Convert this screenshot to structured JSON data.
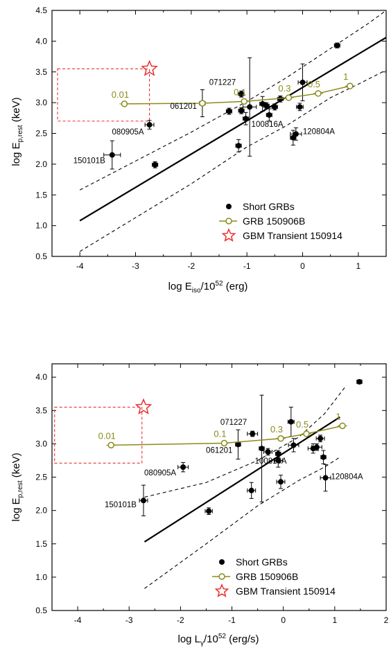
{
  "chart_data": [
    {
      "type": "scatter",
      "xlabel": {
        "main": "log E",
        "sub": "iso",
        "tail": "/10",
        "sup": "52",
        "unit": " (erg)"
      },
      "ylabel": {
        "main": "log E",
        "sub": "p,rest",
        "unit": " (keV)"
      },
      "xlim": [
        -4.5,
        1.5
      ],
      "ylim": [
        0.5,
        4.5
      ],
      "xticks": [
        -4,
        -3,
        -2,
        -1,
        0,
        1
      ],
      "yticks": [
        0.5,
        1.0,
        1.5,
        2.0,
        2.5,
        3.0,
        3.5,
        4.0,
        4.5
      ],
      "ytick_labels": [
        "0.5",
        "1.0",
        "1.5",
        "2.0",
        "2.5",
        "3.0",
        "3.5",
        "4.0",
        "4.5"
      ],
      "short_grbs": [
        {
          "x": -3.42,
          "y": 2.15,
          "xerr": 0.15,
          "yerr": 0.23
        },
        {
          "x": -2.75,
          "y": 2.64,
          "xerr": 0.08,
          "yerr": 0.07
        },
        {
          "x": -2.65,
          "y": 1.99,
          "xerr": 0.05,
          "yerr": 0.05
        },
        {
          "x": -1.8,
          "y": 2.99,
          "xerr": 0.05,
          "yerr": 0.22
        },
        {
          "x": -1.32,
          "y": 2.86,
          "xerr": 0.05,
          "yerr": 0.05
        },
        {
          "x": -1.1,
          "y": 3.14,
          "xerr": 0.05,
          "yerr": 0.05
        },
        {
          "x": -1.1,
          "y": 2.87,
          "xerr": 0.05,
          "yerr": 0.05
        },
        {
          "x": -1.15,
          "y": 2.3,
          "xerr": 0.05,
          "yerr": 0.1
        },
        {
          "x": -1.02,
          "y": 2.74,
          "xerr": 0.05,
          "yerr": 0.1
        },
        {
          "x": -0.95,
          "y": 2.93,
          "xerr": 0.12,
          "yerr": 0.8
        },
        {
          "x": -0.72,
          "y": 2.98,
          "xerr": 0.05,
          "yerr": 0.12
        },
        {
          "x": -0.65,
          "y": 2.95,
          "xerr": 0.05,
          "yerr": 0.05
        },
        {
          "x": -0.6,
          "y": 2.8,
          "xerr": 0.05,
          "yerr": 0.1
        },
        {
          "x": -0.5,
          "y": 2.93,
          "xerr": 0.05,
          "yerr": 0.05
        },
        {
          "x": -0.4,
          "y": 3.06,
          "xerr": 0.05,
          "yerr": 0.05
        },
        {
          "x": -0.05,
          "y": 2.93,
          "xerr": 0.06,
          "yerr": 0.06
        },
        {
          "x": 0.0,
          "y": 3.33,
          "xerr": 0.08,
          "yerr": 0.3
        },
        {
          "x": -0.17,
          "y": 2.43,
          "xerr": 0.05,
          "yerr": 0.12
        },
        {
          "x": -0.12,
          "y": 2.49,
          "xerr": 0.1,
          "yerr": 0.1
        },
        {
          "x": 0.62,
          "y": 3.93,
          "xerr": 0.05,
          "yerr": 0.04
        }
      ],
      "grb_150906b": [
        {
          "x": -3.2,
          "y": 2.98,
          "label": "0.01"
        },
        {
          "x": -1.8,
          "y": 2.99,
          "label": ""
        },
        {
          "x": -1.05,
          "y": 3.02,
          "label": "0.1"
        },
        {
          "x": -0.25,
          "y": 3.08,
          "label": "0.3"
        },
        {
          "x": 0.28,
          "y": 3.15,
          "label": "0.5"
        },
        {
          "x": 0.85,
          "y": 3.27,
          "label": "1"
        }
      ],
      "fit_line": [
        [
          -4.0,
          1.08
        ],
        [
          1.5,
          4.06
        ]
      ],
      "band_upper": [
        [
          -4.0,
          1.58
        ],
        [
          -3.0,
          2.05
        ],
        [
          -2.0,
          2.52
        ],
        [
          -1.0,
          3.02
        ],
        [
          -0.3,
          3.4
        ],
        [
          0.5,
          3.88
        ],
        [
          1.2,
          4.3
        ],
        [
          1.5,
          4.5
        ]
      ],
      "band_lower": [
        [
          -4.0,
          0.58
        ],
        [
          -3.0,
          1.13
        ],
        [
          -2.0,
          1.68
        ],
        [
          -1.0,
          2.28
        ],
        [
          -0.3,
          2.62
        ],
        [
          0.5,
          3.08
        ],
        [
          1.0,
          3.3
        ],
        [
          1.5,
          3.53
        ]
      ],
      "transient_box": {
        "x": [
          -4.4,
          -2.75
        ],
        "y": [
          2.7,
          3.55
        ]
      },
      "transient_star": {
        "x": -2.75,
        "y": 3.55
      },
      "annotations": [
        "071227",
        "061201",
        "080905A",
        "150101B",
        "100816A",
        "120804A"
      ],
      "legend": [
        "Short GRBs",
        "GRB 150906B",
        "GBM Transient 150914"
      ]
    },
    {
      "type": "scatter",
      "xlabel": {
        "main": "log L",
        "sub": "γ",
        "tail": "/10",
        "sup": "52",
        "unit": " (erg/s)"
      },
      "ylabel": {
        "main": "log E",
        "sub": "p,rest",
        "unit": " (keV)"
      },
      "xlim": [
        -4.5,
        2.0
      ],
      "ylim": [
        0.5,
        4.2
      ],
      "xticks": [
        -4,
        -3,
        -2,
        -1,
        0,
        1,
        2
      ],
      "yticks": [
        0.5,
        1.0,
        1.5,
        2.0,
        2.5,
        3.0,
        3.5,
        4.0
      ],
      "ytick_labels": [
        "0.5",
        "1.0",
        "1.5",
        "2.0",
        "2.5",
        "3.0",
        "3.5",
        "4.0"
      ],
      "short_grbs": [
        {
          "x": -2.72,
          "y": 2.15,
          "xerr": 0.08,
          "yerr": 0.23
        },
        {
          "x": -1.95,
          "y": 2.65,
          "xerr": 0.1,
          "yerr": 0.07
        },
        {
          "x": -1.45,
          "y": 1.99,
          "xerr": 0.07,
          "yerr": 0.05
        },
        {
          "x": -0.88,
          "y": 2.99,
          "xerr": 0.05,
          "yerr": 0.22
        },
        {
          "x": -0.6,
          "y": 3.15,
          "xerr": 0.1,
          "yerr": 0.04
        },
        {
          "x": -0.62,
          "y": 2.3,
          "xerr": 0.08,
          "yerr": 0.12
        },
        {
          "x": -0.42,
          "y": 2.93,
          "xerr": 0.05,
          "yerr": 0.8
        },
        {
          "x": -0.3,
          "y": 2.88,
          "xerr": 0.08,
          "yerr": 0.05
        },
        {
          "x": -0.1,
          "y": 2.85,
          "xerr": 0.05,
          "yerr": 0.05
        },
        {
          "x": -0.1,
          "y": 2.75,
          "xerr": 0.08,
          "yerr": 0.1
        },
        {
          "x": -0.05,
          "y": 2.43,
          "xerr": 0.08,
          "yerr": 0.1
        },
        {
          "x": 0.15,
          "y": 3.33,
          "xerr": 0.06,
          "yerr": 0.22
        },
        {
          "x": 0.2,
          "y": 2.98,
          "xerr": 0.1,
          "yerr": 0.1
        },
        {
          "x": 0.58,
          "y": 2.93,
          "xerr": 0.1,
          "yerr": 0.07
        },
        {
          "x": 0.65,
          "y": 2.95,
          "xerr": 0.1,
          "yerr": 0.05
        },
        {
          "x": 0.72,
          "y": 3.08,
          "xerr": 0.08,
          "yerr": 0.05
        },
        {
          "x": 0.78,
          "y": 2.8,
          "xerr": 0.05,
          "yerr": 0.1
        },
        {
          "x": 0.82,
          "y": 2.49,
          "xerr": 0.1,
          "yerr": 0.2
        },
        {
          "x": 1.48,
          "y": 3.93,
          "xerr": 0.05,
          "yerr": 0.03
        }
      ],
      "grb_150906b": [
        {
          "x": -3.35,
          "y": 2.98,
          "label": "0.01"
        },
        {
          "x": -1.15,
          "y": 3.01,
          "label": "0.1"
        },
        {
          "x": -0.05,
          "y": 3.08,
          "label": "0.3"
        },
        {
          "x": 0.45,
          "y": 3.15,
          "label": "0.5"
        },
        {
          "x": 1.15,
          "y": 3.27,
          "label": "1"
        }
      ],
      "fit_line": [
        [
          -2.7,
          1.53
        ],
        [
          1.1,
          3.4
        ]
      ],
      "band_upper": [
        [
          -2.7,
          2.2
        ],
        [
          -1.5,
          2.42
        ],
        [
          -0.5,
          2.75
        ],
        [
          0.3,
          3.1
        ],
        [
          0.8,
          3.45
        ],
        [
          1.1,
          3.75
        ],
        [
          1.2,
          3.85
        ]
      ],
      "band_lower": [
        [
          -2.7,
          0.83
        ],
        [
          -1.5,
          1.5
        ],
        [
          -0.5,
          2.07
        ],
        [
          0.3,
          2.45
        ],
        [
          0.8,
          2.65
        ],
        [
          1.1,
          2.8
        ]
      ],
      "transient_box": {
        "x": [
          -4.45,
          -2.75
        ],
        "y": [
          2.71,
          3.55
        ]
      },
      "transient_star": {
        "x": -2.72,
        "y": 3.55
      },
      "annotations": [
        "071227",
        "061201",
        "080905A",
        "150101B",
        "100816A",
        "120804A"
      ],
      "legend": [
        "Short GRBs",
        "GRB 150906B",
        "GBM Transient 150914"
      ]
    }
  ]
}
